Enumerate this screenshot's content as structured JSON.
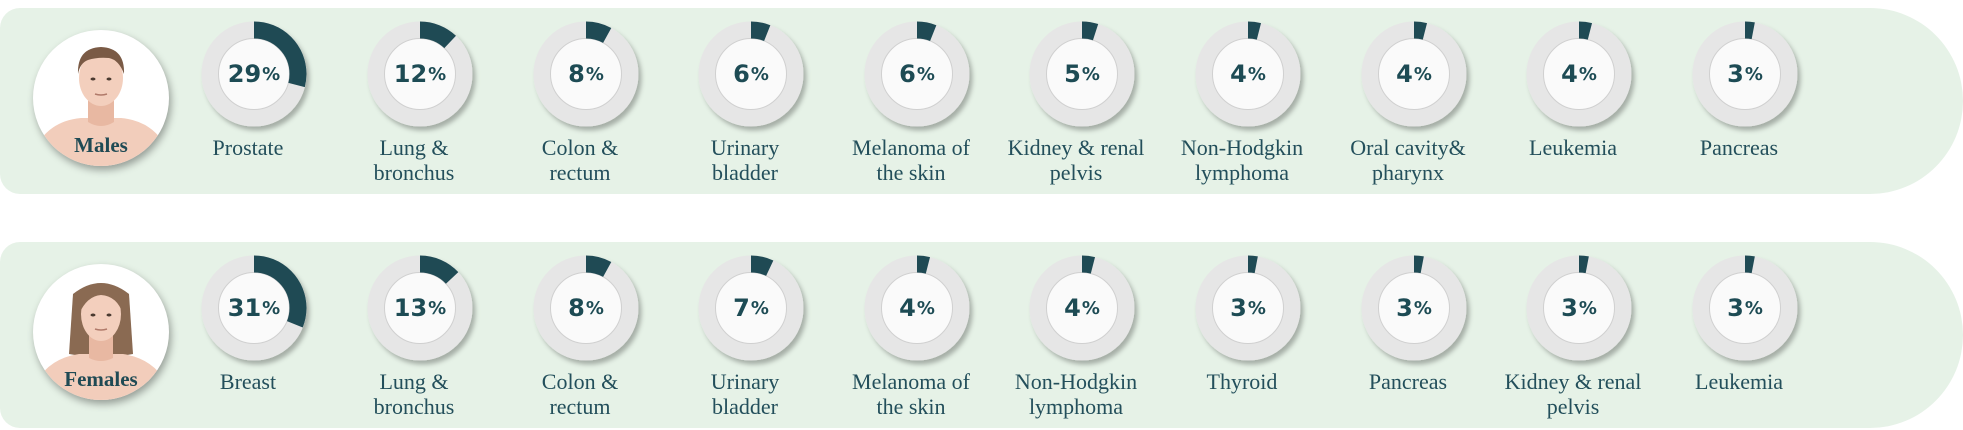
{
  "colors": {
    "band": "#e6f2e7",
    "arc": "#1f4a54",
    "ring": "#e8e8e8",
    "text": "#234f5b"
  },
  "chart_data": [
    {
      "type": "donut",
      "group": "Males",
      "categories": [
        "Prostate",
        "Lung & bronchus",
        "Colon & rectum",
        "Urinary bladder",
        "Melanoma of the skin",
        "Kidney & renal pelvis",
        "Non-Hodgkin lymphoma",
        "Oral cavity& pharynx",
        "Leukemia",
        "Pancreas"
      ],
      "values": [
        29,
        12,
        8,
        6,
        6,
        5,
        4,
        4,
        4,
        3
      ],
      "unit": "%"
    },
    {
      "type": "donut",
      "group": "Females",
      "categories": [
        "Breast",
        "Lung & bronchus",
        "Colon & rectum",
        "Urinary bladder",
        "Melanoma of the skin",
        "Non-Hodgkin lymphoma",
        "Thyroid",
        "Pancreas",
        "Kidney & renal pelvis",
        "Leukemia"
      ],
      "values": [
        31,
        13,
        8,
        7,
        4,
        4,
        3,
        3,
        3,
        3
      ],
      "unit": "%"
    }
  ],
  "rows": [
    {
      "id": "males",
      "label": "Males",
      "items": [
        {
          "value": 29,
          "display": "29",
          "label_lines": [
            "Prostate"
          ]
        },
        {
          "value": 12,
          "display": "12",
          "label_lines": [
            "Lung &",
            "bronchus"
          ]
        },
        {
          "value": 8,
          "display": "8",
          "label_lines": [
            "Colon &",
            "rectum"
          ]
        },
        {
          "value": 6,
          "display": "6",
          "label_lines": [
            "Urinary",
            "bladder"
          ]
        },
        {
          "value": 6,
          "display": "6",
          "label_lines": [
            "Melanoma of",
            "the skin"
          ]
        },
        {
          "value": 5,
          "display": "5",
          "label_lines": [
            "Kidney & renal",
            "pelvis"
          ]
        },
        {
          "value": 4,
          "display": "4",
          "label_lines": [
            "Non-Hodgkin",
            "lymphoma"
          ]
        },
        {
          "value": 4,
          "display": "4",
          "label_lines": [
            "Oral cavity&",
            "pharynx"
          ]
        },
        {
          "value": 4,
          "display": "4",
          "label_lines": [
            "Leukemia"
          ]
        },
        {
          "value": 3,
          "display": "3",
          "label_lines": [
            "Pancreas"
          ]
        }
      ]
    },
    {
      "id": "females",
      "label": "Females",
      "items": [
        {
          "value": 31,
          "display": "31",
          "label_lines": [
            "Breast"
          ]
        },
        {
          "value": 13,
          "display": "13",
          "label_lines": [
            "Lung &",
            "bronchus"
          ]
        },
        {
          "value": 8,
          "display": "8",
          "label_lines": [
            "Colon &",
            "rectum"
          ]
        },
        {
          "value": 7,
          "display": "7",
          "label_lines": [
            "Urinary",
            "bladder"
          ]
        },
        {
          "value": 4,
          "display": "4",
          "label_lines": [
            "Melanoma of",
            "the skin"
          ]
        },
        {
          "value": 4,
          "display": "4",
          "label_lines": [
            "Non-Hodgkin",
            "lymphoma"
          ]
        },
        {
          "value": 3,
          "display": "3",
          "label_lines": [
            "Thyroid"
          ]
        },
        {
          "value": 3,
          "display": "3",
          "label_lines": [
            "Pancreas"
          ]
        },
        {
          "value": 3,
          "display": "3",
          "label_lines": [
            "Kidney & renal",
            "pelvis"
          ]
        },
        {
          "value": 3,
          "display": "3",
          "label_lines": [
            "Leukemia"
          ]
        }
      ]
    }
  ],
  "percent_symbol": "%"
}
